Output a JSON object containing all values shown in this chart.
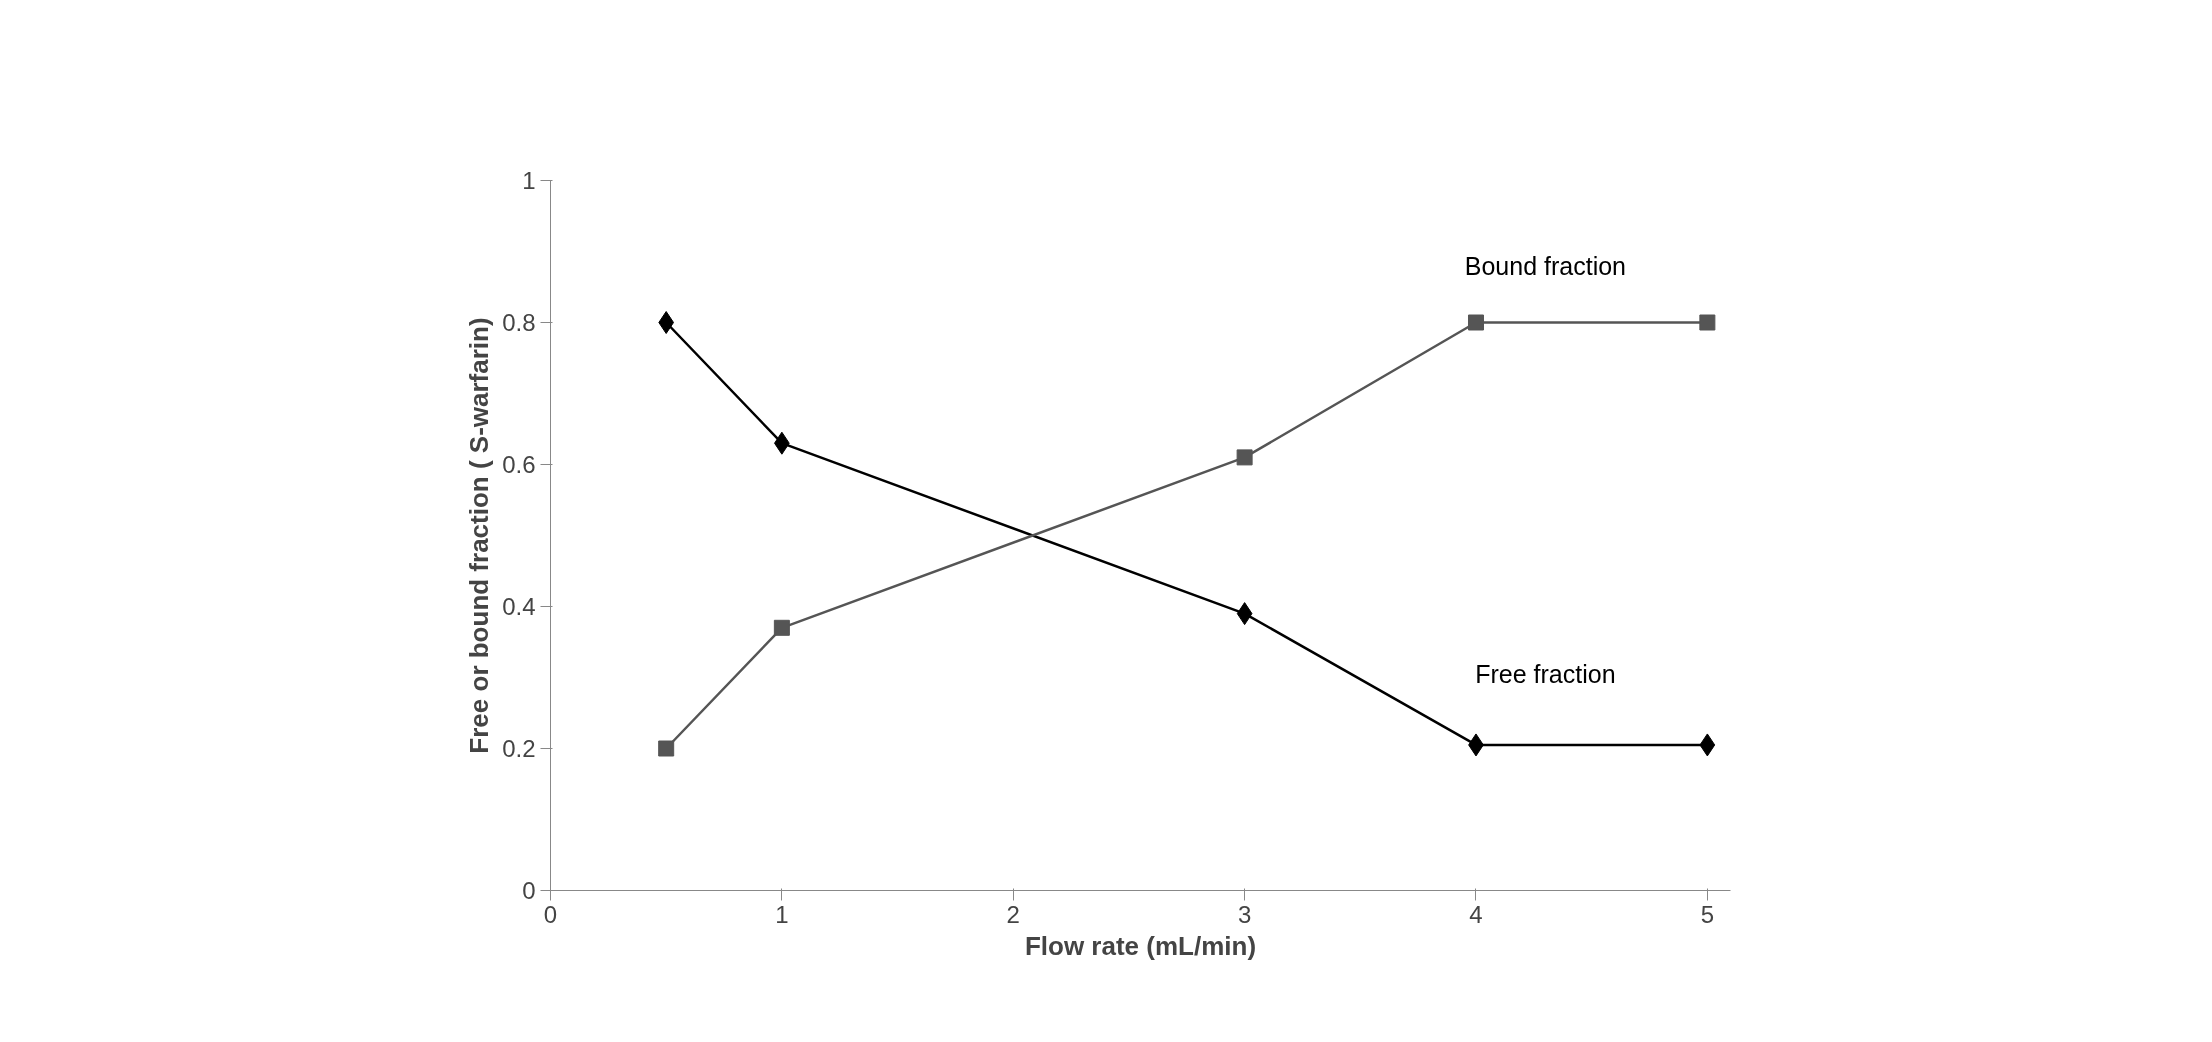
{
  "chart_data": {
    "type": "line",
    "xlabel": "Flow rate (mL/min)",
    "ylabel": "Free or bound fraction ( S-warfarin)",
    "x": [
      0.5,
      1,
      3,
      4,
      5
    ],
    "series": [
      {
        "name": "Free fraction",
        "color": "#000000",
        "marker": "diamond",
        "values": [
          0.8,
          0.63,
          0.39,
          0.205,
          0.205
        ]
      },
      {
        "name": "Bound fraction",
        "color": "#555555",
        "marker": "square",
        "values": [
          0.2,
          0.37,
          0.61,
          0.8,
          0.8
        ]
      }
    ],
    "xlim": [
      0,
      5.1
    ],
    "ylim": [
      0,
      1
    ],
    "xticks": [
      0,
      1,
      2,
      3,
      4,
      5
    ],
    "yticks": [
      0,
      0.2,
      0.4,
      0.6,
      0.8,
      1
    ],
    "grid": false,
    "line_style": "solid"
  }
}
